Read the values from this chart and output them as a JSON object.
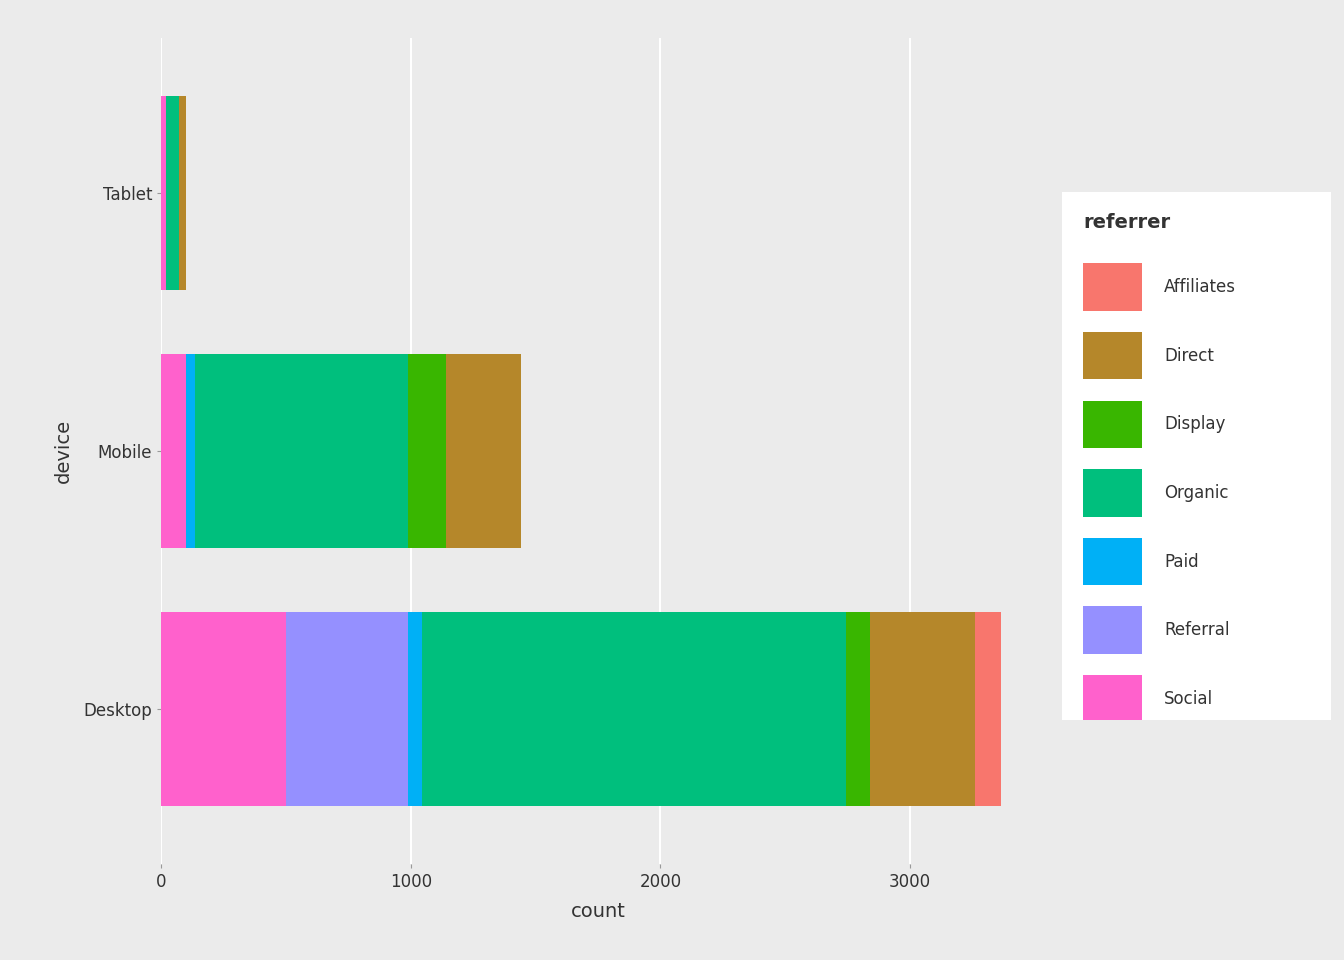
{
  "categories": [
    "Desktop",
    "Mobile",
    "Tablet"
  ],
  "referrers_stack_order": [
    "Social",
    "Referral",
    "Paid",
    "Organic",
    "Display",
    "Direct",
    "Affiliates"
  ],
  "legend_order": [
    "Affiliates",
    "Direct",
    "Display",
    "Organic",
    "Paid",
    "Referral",
    "Social"
  ],
  "colors": {
    "Affiliates": "#F8766D",
    "Direct": "#B5872A",
    "Display": "#39B600",
    "Organic": "#00BF7D",
    "Paid": "#00B0F6",
    "Referral": "#9590FF",
    "Social": "#FF61CC"
  },
  "data": {
    "Desktop": {
      "Social": 500,
      "Referral": 490,
      "Paid": 55,
      "Organic": 1700,
      "Display": 95,
      "Direct": 420,
      "Affiliates": 105
    },
    "Mobile": {
      "Social": 100,
      "Referral": 0,
      "Paid": 35,
      "Organic": 855,
      "Display": 150,
      "Direct": 300,
      "Affiliates": 0
    },
    "Tablet": {
      "Social": 18,
      "Referral": 0,
      "Paid": 0,
      "Organic": 52,
      "Display": 0,
      "Direct": 28,
      "Affiliates": 0
    }
  },
  "bg_color": "#EBEBEB",
  "panel_bg": "#EBEBEB",
  "grid_color": "#FFFFFF",
  "xlabel": "count",
  "ylabel": "device",
  "legend_title": "referrer",
  "xlim": [
    0,
    3500
  ],
  "xticks": [
    0,
    1000,
    2000,
    3000
  ],
  "axis_fontsize": 14,
  "tick_fontsize": 12,
  "legend_fontsize": 12,
  "legend_title_fontsize": 14
}
